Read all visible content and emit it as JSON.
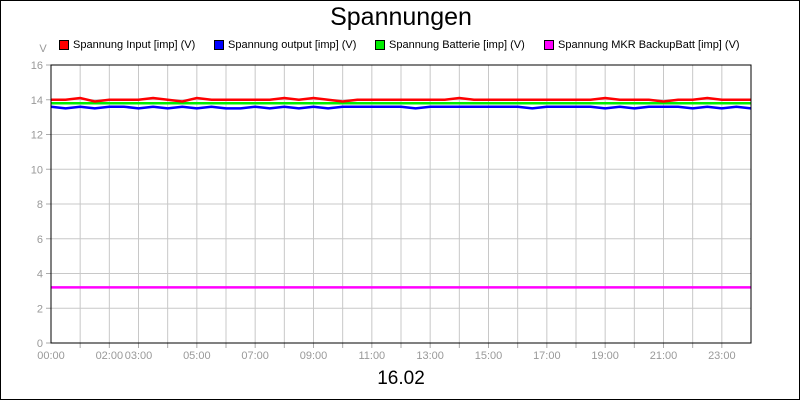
{
  "chart_data": {
    "type": "line",
    "title": "Spannungen",
    "xlabel": "16.02",
    "ylabel": "V",
    "ylim": [
      0,
      16
    ],
    "yticks": [
      "0",
      "2",
      "4",
      "6",
      "8",
      "10",
      "12",
      "14",
      "16"
    ],
    "xlim_hours": [
      0,
      24
    ],
    "xtick_labels": [
      {
        "h": 0,
        "t": "00:00"
      },
      {
        "h": 2,
        "t": "02:00"
      },
      {
        "h": 3,
        "t": "03:00"
      },
      {
        "h": 5,
        "t": "05:00"
      },
      {
        "h": 7,
        "t": "07:00"
      },
      {
        "h": 9,
        "t": "09:00"
      },
      {
        "h": 11,
        "t": "11:00"
      },
      {
        "h": 13,
        "t": "13:00"
      },
      {
        "h": 15,
        "t": "15:00"
      },
      {
        "h": 17,
        "t": "17:00"
      },
      {
        "h": 19,
        "t": "19:00"
      },
      {
        "h": 21,
        "t": "21:00"
      },
      {
        "h": 23,
        "t": "23:00"
      }
    ],
    "grid": true,
    "legend_position": "top",
    "x_hours_step": 0.5,
    "series": [
      {
        "name": "Spannung Input [imp] (V)",
        "color": "#ff0000",
        "values": [
          14.0,
          14.0,
          14.1,
          13.9,
          14.0,
          14.0,
          14.0,
          14.1,
          14.0,
          13.9,
          14.1,
          14.0,
          14.0,
          14.0,
          14.0,
          14.0,
          14.1,
          14.0,
          14.1,
          14.0,
          13.9,
          14.0,
          14.0,
          14.0,
          14.0,
          14.0,
          14.0,
          14.0,
          14.1,
          14.0,
          14.0,
          14.0,
          14.0,
          14.0,
          14.0,
          14.0,
          14.0,
          14.0,
          14.1,
          14.0,
          14.0,
          14.0,
          13.9,
          14.0,
          14.0,
          14.1,
          14.0,
          14.0,
          14.0
        ]
      },
      {
        "name": "Spannung output [imp] (V)",
        "color": "#0000ff",
        "values": [
          13.6,
          13.5,
          13.6,
          13.5,
          13.6,
          13.6,
          13.5,
          13.6,
          13.5,
          13.6,
          13.5,
          13.6,
          13.5,
          13.5,
          13.6,
          13.5,
          13.6,
          13.5,
          13.6,
          13.5,
          13.6,
          13.6,
          13.6,
          13.6,
          13.6,
          13.5,
          13.6,
          13.6,
          13.6,
          13.6,
          13.6,
          13.6,
          13.6,
          13.5,
          13.6,
          13.6,
          13.6,
          13.6,
          13.5,
          13.6,
          13.5,
          13.6,
          13.6,
          13.6,
          13.5,
          13.6,
          13.5,
          13.6,
          13.5
        ]
      },
      {
        "name": "Spannung Batterie [imp] (V)",
        "color": "#00ee00",
        "values": [
          13.8,
          13.8,
          13.8,
          13.8,
          13.8,
          13.8,
          13.8,
          13.8,
          13.8,
          13.8,
          13.8,
          13.8,
          13.8,
          13.8,
          13.8,
          13.8,
          13.8,
          13.8,
          13.8,
          13.8,
          13.8,
          13.8,
          13.8,
          13.8,
          13.8,
          13.8,
          13.8,
          13.8,
          13.8,
          13.8,
          13.8,
          13.8,
          13.8,
          13.8,
          13.8,
          13.8,
          13.8,
          13.8,
          13.8,
          13.8,
          13.8,
          13.8,
          13.8,
          13.8,
          13.8,
          13.8,
          13.8,
          13.8,
          13.8
        ]
      },
      {
        "name": "Spannung MKR BackupBatt [imp] (V)",
        "color": "#ff00ff",
        "values": [
          3.2,
          3.2,
          3.2,
          3.2,
          3.2,
          3.2,
          3.2,
          3.2,
          3.2,
          3.2,
          3.2,
          3.2,
          3.2,
          3.2,
          3.2,
          3.2,
          3.2,
          3.2,
          3.2,
          3.2,
          3.2,
          3.2,
          3.2,
          3.2,
          3.2,
          3.2,
          3.2,
          3.2,
          3.2,
          3.2,
          3.2,
          3.2,
          3.2,
          3.2,
          3.2,
          3.2,
          3.2,
          3.2,
          3.2,
          3.2,
          3.2,
          3.2,
          3.2,
          3.2,
          3.2,
          3.2,
          3.2,
          3.2,
          3.2
        ]
      }
    ]
  }
}
